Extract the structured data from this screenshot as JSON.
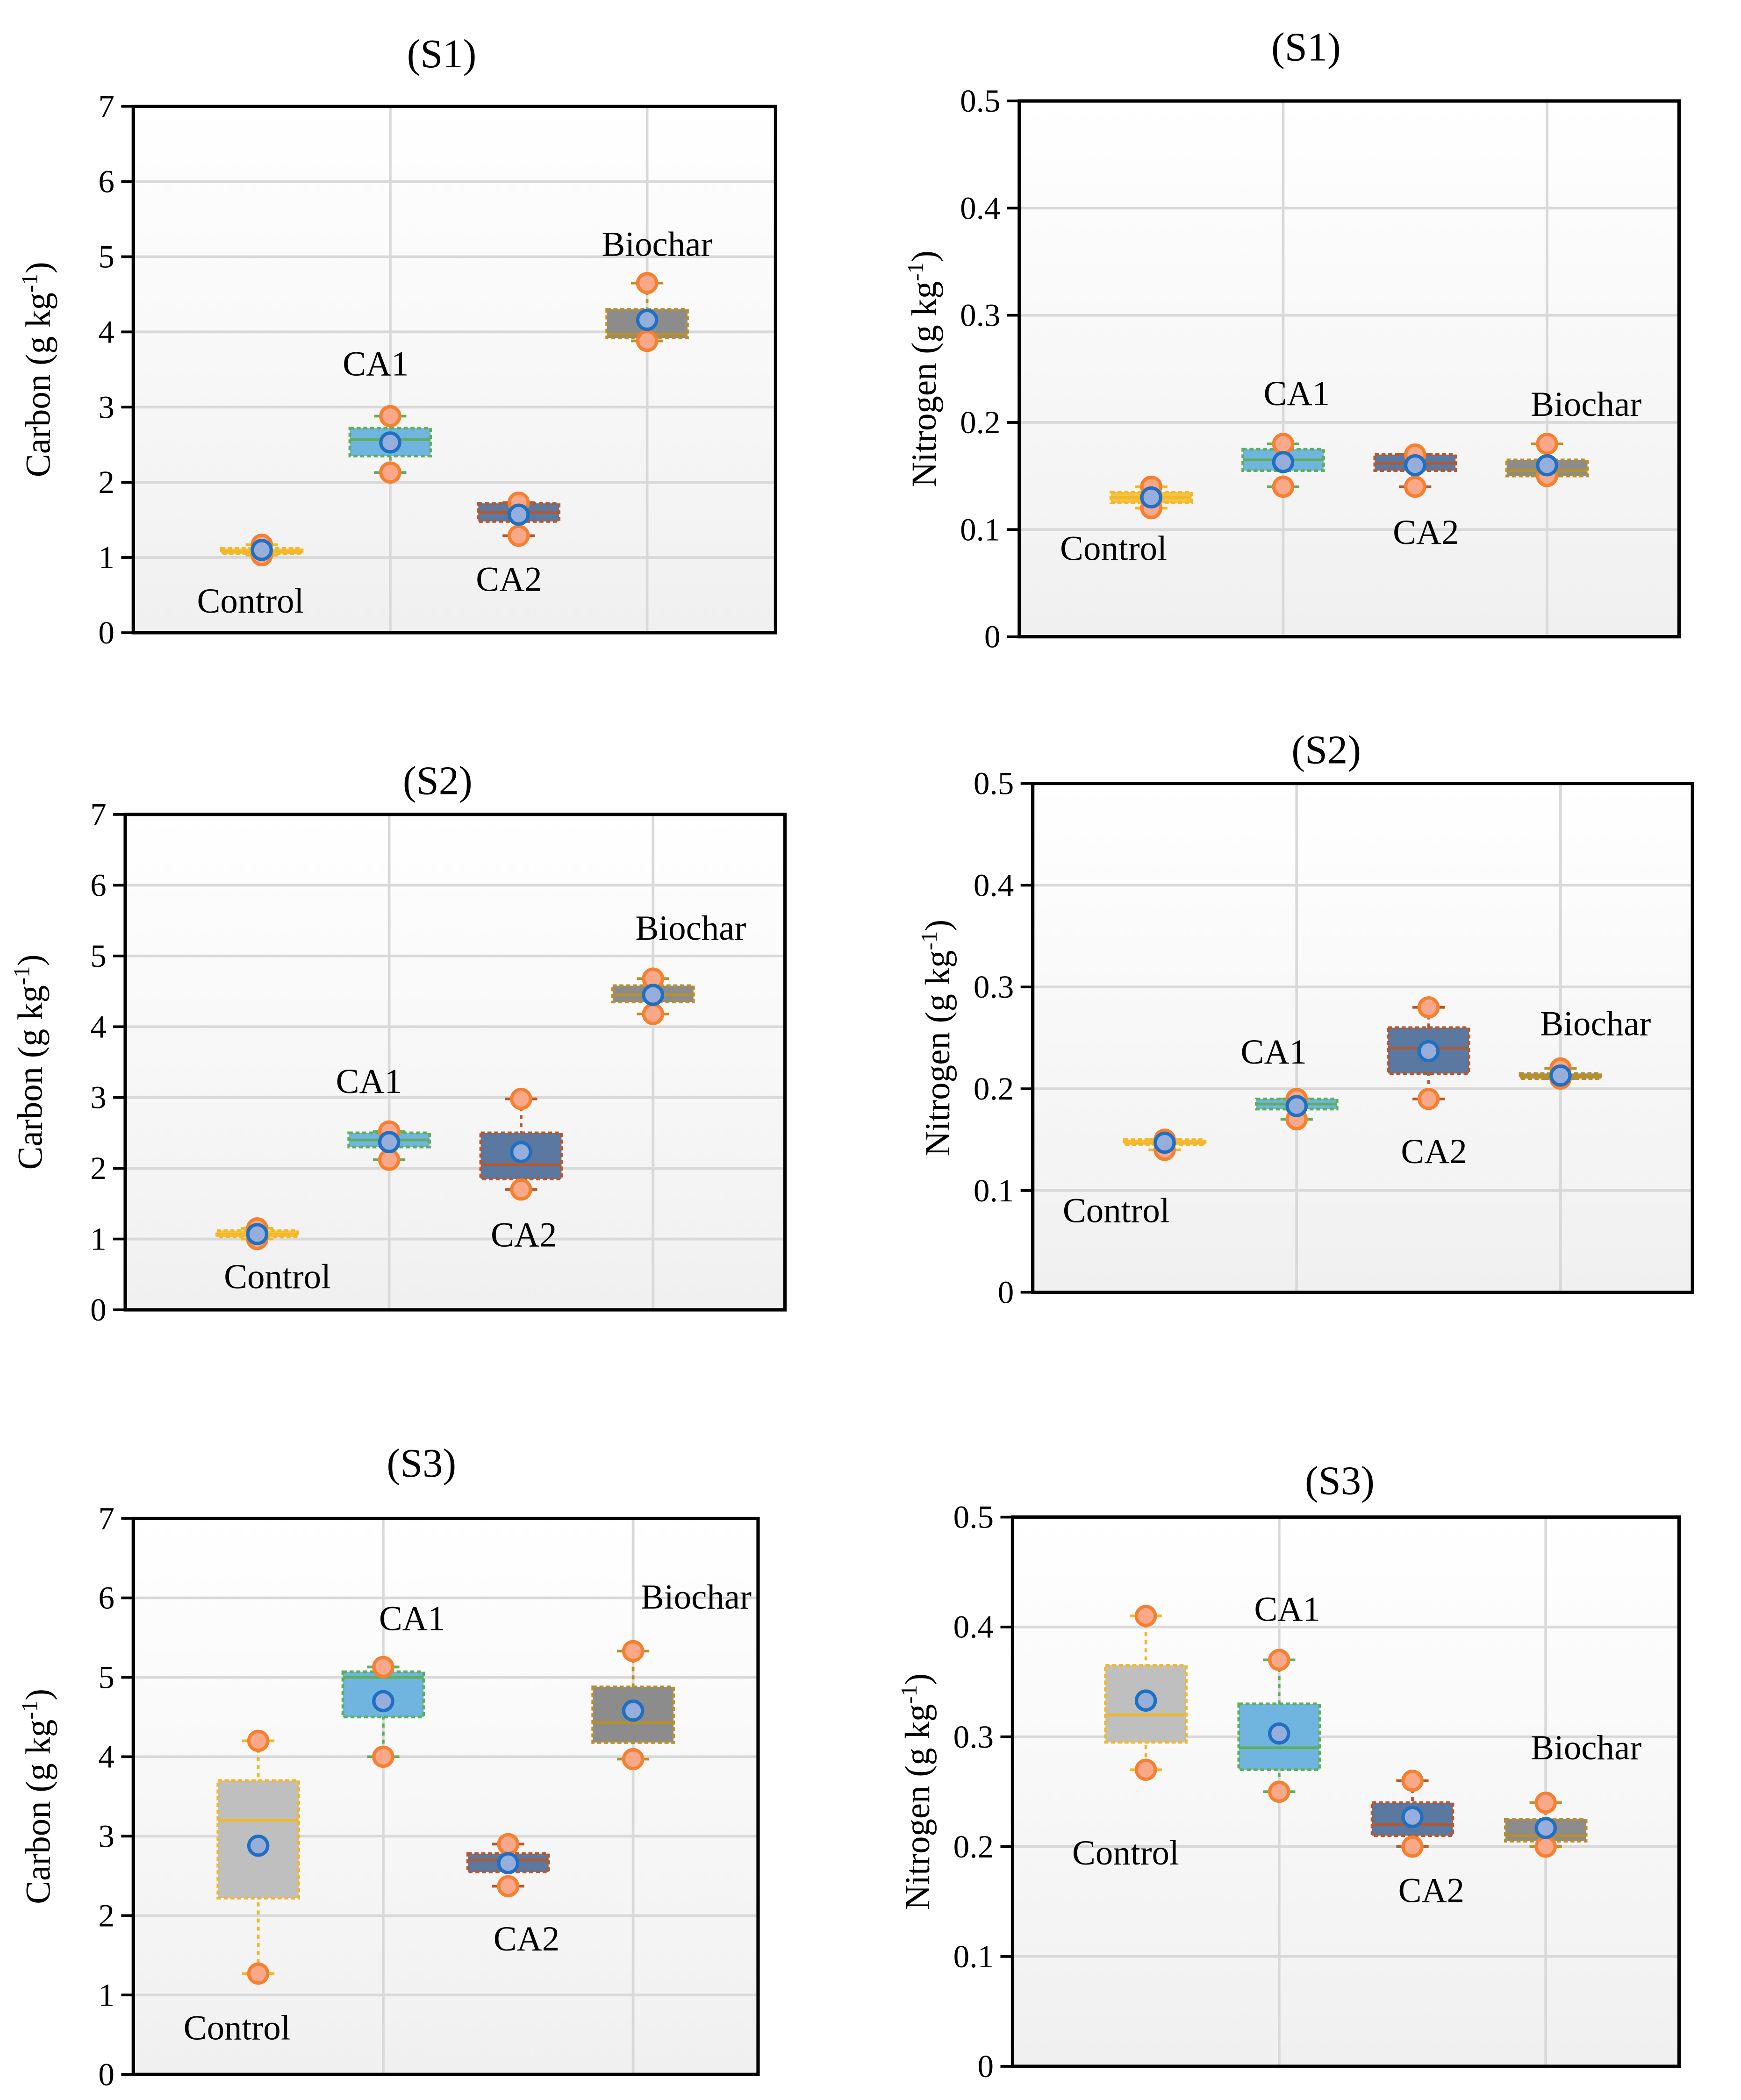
{
  "colors": {
    "control": "#F5C242",
    "control_s3": "#BFBFBF",
    "control_edge": "#F2B829",
    "ca1": "#6FB5E0",
    "ca1_edge": "#5FAF5A",
    "ca2": "#5A78A0",
    "ca2_edge": "#B5582F",
    "biochar": "#8C8C8C",
    "biochar_edge": "#B8902A",
    "point_fill": "#F9A88A",
    "point_stroke": "#F6802F",
    "mean_fill": "#97AEDB",
    "mean_stroke": "#1F6FC3",
    "grid": "#D9D9D9"
  },
  "chart_data": [
    {
      "type": "box",
      "title": "(S1)",
      "ylabel": "Carbon (g kg",
      "ylabel_sup": "-1",
      "ylabel_end": ")",
      "ylim": [
        0,
        7
      ],
      "yticks": [
        "0",
        "1",
        "2",
        "3",
        "4",
        "5",
        "6",
        "7"
      ],
      "categories": [
        "Control",
        "CA1",
        "CA2",
        "Biochar"
      ],
      "boxes": [
        {
          "q1": 1.05,
          "median": 1.08,
          "q3": 1.12,
          "mean": 1.1,
          "points": [
            1.03,
            1.17
          ]
        },
        {
          "q1": 2.35,
          "median": 2.57,
          "q3": 2.72,
          "mean": 2.53,
          "points": [
            2.13,
            2.88
          ]
        },
        {
          "q1": 1.48,
          "median": 1.6,
          "q3": 1.72,
          "mean": 1.57,
          "points": [
            1.29,
            1.73
          ]
        },
        {
          "q1": 3.92,
          "median": 3.97,
          "q3": 4.3,
          "mean": 4.16,
          "points": [
            3.88,
            4.65
          ]
        }
      ]
    },
    {
      "type": "box",
      "title": "(S1)",
      "ylabel": "Nitrogen (g kg",
      "ylabel_sup": "-1",
      "ylabel_end": ")",
      "ylim": [
        0,
        0.5
      ],
      "yticks": [
        "0",
        "0.1",
        "0.2",
        "0.3",
        "0.4",
        "0.5"
      ],
      "categories": [
        "Control",
        "CA1",
        "CA2",
        "Biochar"
      ],
      "boxes": [
        {
          "q1": 0.125,
          "median": 0.13,
          "q3": 0.135,
          "mean": 0.13,
          "points": [
            0.12,
            0.14
          ]
        },
        {
          "q1": 0.155,
          "median": 0.165,
          "q3": 0.175,
          "mean": 0.163,
          "points": [
            0.14,
            0.18
          ]
        },
        {
          "q1": 0.155,
          "median": 0.162,
          "q3": 0.17,
          "mean": 0.16,
          "points": [
            0.14,
            0.17
          ]
        },
        {
          "q1": 0.15,
          "median": 0.155,
          "q3": 0.165,
          "mean": 0.16,
          "points": [
            0.15,
            0.18
          ]
        }
      ]
    },
    {
      "type": "box",
      "title": "(S2)",
      "ylabel": "Carbon (g kg",
      "ylabel_sup": "-1",
      "ylabel_end": ")",
      "ylim": [
        0,
        7
      ],
      "yticks": [
        "0",
        "1",
        "2",
        "3",
        "4",
        "5",
        "6",
        "7"
      ],
      "categories": [
        "Control",
        "CA1",
        "CA2",
        "Biochar"
      ],
      "boxes": [
        {
          "q1": 1.03,
          "median": 1.07,
          "q3": 1.12,
          "mean": 1.07,
          "points": [
            1.0,
            1.15
          ]
        },
        {
          "q1": 2.3,
          "median": 2.4,
          "q3": 2.5,
          "mean": 2.37,
          "points": [
            2.12,
            2.52
          ]
        },
        {
          "q1": 1.85,
          "median": 2.05,
          "q3": 2.5,
          "mean": 2.23,
          "points": [
            1.7,
            2.98
          ]
        },
        {
          "q1": 4.35,
          "median": 4.45,
          "q3": 4.58,
          "mean": 4.45,
          "points": [
            4.18,
            4.68
          ]
        }
      ]
    },
    {
      "type": "box",
      "title": "(S2)",
      "ylabel": "Nitrogen (g kg",
      "ylabel_sup": "-1",
      "ylabel_end": ")",
      "ylim": [
        0,
        0.5
      ],
      "yticks": [
        "0",
        "0.1",
        "0.2",
        "0.3",
        "0.4",
        "0.5"
      ],
      "categories": [
        "Control",
        "CA1",
        "CA2",
        "Biochar"
      ],
      "boxes": [
        {
          "q1": 0.145,
          "median": 0.147,
          "q3": 0.15,
          "mean": 0.147,
          "points": [
            0.14,
            0.15
          ]
        },
        {
          "q1": 0.18,
          "median": 0.185,
          "q3": 0.19,
          "mean": 0.183,
          "points": [
            0.17,
            0.19
          ]
        },
        {
          "q1": 0.215,
          "median": 0.24,
          "q3": 0.26,
          "mean": 0.237,
          "points": [
            0.19,
            0.28
          ]
        },
        {
          "q1": 0.21,
          "median": 0.212,
          "q3": 0.215,
          "mean": 0.213,
          "points": [
            0.21,
            0.22
          ]
        }
      ]
    },
    {
      "type": "box",
      "title": "(S3)",
      "ylabel": "Carbon (g kg",
      "ylabel_sup": "-1",
      "ylabel_end": ")",
      "ylim": [
        0,
        7
      ],
      "yticks": [
        "0",
        "1",
        "2",
        "3",
        "4",
        "5",
        "6",
        "7"
      ],
      "categories": [
        "Control",
        "CA1",
        "CA2",
        "Biochar"
      ],
      "boxes": [
        {
          "q1": 2.22,
          "median": 3.2,
          "q3": 3.7,
          "mean": 2.88,
          "points": [
            1.27,
            4.2
          ]
        },
        {
          "q1": 4.5,
          "median": 5.0,
          "q3": 5.07,
          "mean": 4.7,
          "points": [
            4.0,
            5.13
          ]
        },
        {
          "q1": 2.55,
          "median": 2.7,
          "q3": 2.78,
          "mean": 2.66,
          "points": [
            2.37,
            2.9
          ]
        },
        {
          "q1": 4.18,
          "median": 4.43,
          "q3": 4.88,
          "mean": 4.58,
          "points": [
            3.97,
            5.33
          ]
        }
      ]
    },
    {
      "type": "box",
      "title": "(S3)",
      "ylabel": "Nitrogen (g kg",
      "ylabel_sup": "-1",
      "ylabel_end": ")",
      "ylim": [
        0,
        0.5
      ],
      "yticks": [
        "0",
        "0.1",
        "0.2",
        "0.3",
        "0.4",
        "0.5"
      ],
      "categories": [
        "Control",
        "CA1",
        "CA2",
        "Biochar"
      ],
      "boxes": [
        {
          "q1": 0.295,
          "median": 0.32,
          "q3": 0.365,
          "mean": 0.333,
          "points": [
            0.27,
            0.41
          ]
        },
        {
          "q1": 0.27,
          "median": 0.29,
          "q3": 0.33,
          "mean": 0.303,
          "points": [
            0.25,
            0.37
          ]
        },
        {
          "q1": 0.21,
          "median": 0.22,
          "q3": 0.24,
          "mean": 0.227,
          "points": [
            0.2,
            0.26
          ]
        },
        {
          "q1": 0.205,
          "median": 0.21,
          "q3": 0.225,
          "mean": 0.217,
          "points": [
            0.2,
            0.24
          ]
        }
      ]
    }
  ]
}
